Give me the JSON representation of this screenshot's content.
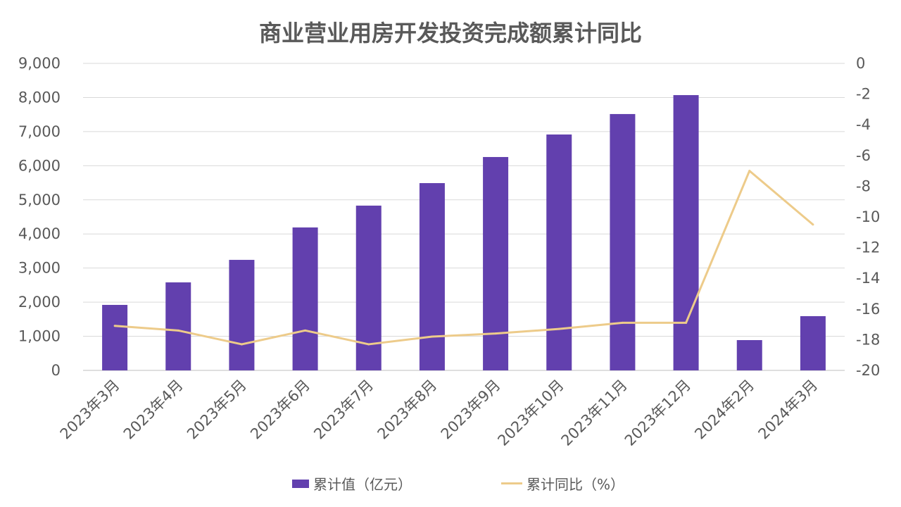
{
  "chart_data": {
    "type": "bar+line",
    "title": "商业营业用房开发投资完成额累计同比",
    "categories": [
      "2023年3月",
      "2023年4月",
      "2023年5月",
      "2023年6月",
      "2023年7月",
      "2023年8月",
      "2023年9月",
      "2023年10月",
      "2023年11月",
      "2023年12月",
      "2024年2月",
      "2024年3月"
    ],
    "series": [
      {
        "name": "累计值（亿元）",
        "type": "bar",
        "axis": "left",
        "color": "#6240AE",
        "values": [
          1920,
          2580,
          3240,
          4190,
          4830,
          5490,
          6255,
          6915,
          7515,
          8070,
          888,
          1590
        ]
      },
      {
        "name": "累计同比（%）",
        "type": "line",
        "axis": "right",
        "color": "#EDCB8A",
        "values": [
          -17.1,
          -17.4,
          -18.3,
          -17.4,
          -18.3,
          -17.8,
          -17.6,
          -17.3,
          -16.9,
          -16.9,
          -7.0,
          -10.5
        ]
      }
    ],
    "left_axis": {
      "ylim": [
        0,
        9000
      ],
      "ticks": [
        "0",
        "1,000",
        "2,000",
        "3,000",
        "4,000",
        "5,000",
        "6,000",
        "7,000",
        "8,000",
        "9,000"
      ]
    },
    "right_axis": {
      "ylim": [
        -20,
        0
      ],
      "ticks": [
        "-20",
        "-18",
        "-16",
        "-14",
        "-12",
        "-10",
        "-8",
        "-6",
        "-4",
        "-2",
        "0"
      ]
    },
    "grid": true,
    "legend": "bottom"
  }
}
